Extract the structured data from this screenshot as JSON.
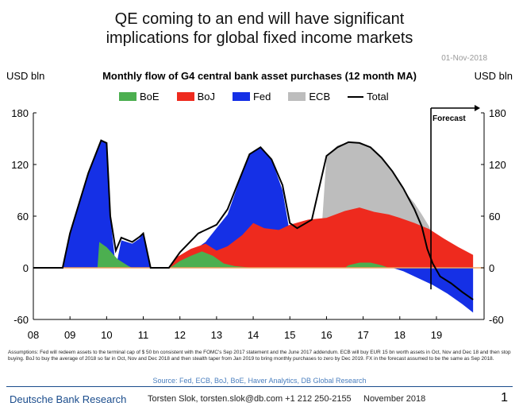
{
  "headline": [
    "QE coming to an end will have significant",
    "implications for global fixed income markets"
  ],
  "date": "01-Nov-2018",
  "chart_data": {
    "type": "area",
    "title": "Monthly flow of G4 central bank asset purchases (12 month MA)",
    "ylabel_left": "USD bln",
    "ylabel_right": "USD bln",
    "ylim": [
      -60,
      180
    ],
    "yticks": [
      -60,
      0,
      60,
      120,
      180
    ],
    "xlim": [
      2008,
      2020.3
    ],
    "xticks": [
      2008,
      2009,
      2010,
      2011,
      2012,
      2013,
      2014,
      2015,
      2016,
      2017,
      2018,
      2019
    ],
    "xtick_labels": [
      "08",
      "09",
      "10",
      "11",
      "12",
      "13",
      "14",
      "15",
      "16",
      "17",
      "18",
      "19"
    ],
    "forecast_start": 2018.85,
    "forecast_label": "Forecast",
    "legend": [
      "BoE",
      "BoJ",
      "Fed",
      "ECB",
      "Total"
    ],
    "colors": {
      "BoE": "#4caf50",
      "BoJ": "#ee2a1e",
      "Fed": "#1530e6",
      "ECB": "#bdbdbd",
      "Total": "#000000"
    },
    "series": [
      {
        "name": "BoE",
        "points": [
          [
            2009.75,
            0
          ],
          [
            2009.8,
            30
          ],
          [
            2010.0,
            24
          ],
          [
            2010.3,
            10
          ],
          [
            2010.6,
            2
          ],
          [
            2010.7,
            0
          ],
          [
            2011.7,
            0
          ],
          [
            2011.8,
            2
          ],
          [
            2012.0,
            8
          ],
          [
            2012.3,
            14
          ],
          [
            2012.6,
            19
          ],
          [
            2012.9,
            14
          ],
          [
            2013.2,
            5
          ],
          [
            2013.5,
            2
          ],
          [
            2014.0,
            0
          ],
          [
            2016.5,
            0
          ],
          [
            2016.6,
            3
          ],
          [
            2016.9,
            6
          ],
          [
            2017.2,
            6
          ],
          [
            2017.5,
            3
          ],
          [
            2017.7,
            0
          ],
          [
            2020.0,
            0
          ]
        ]
      },
      {
        "name": "BoJ",
        "points": [
          [
            2011.7,
            0
          ],
          [
            2011.9,
            12
          ],
          [
            2012.3,
            22
          ],
          [
            2012.7,
            28
          ],
          [
            2013.0,
            20
          ],
          [
            2013.3,
            25
          ],
          [
            2013.7,
            38
          ],
          [
            2014.0,
            52
          ],
          [
            2014.3,
            46
          ],
          [
            2014.7,
            44
          ],
          [
            2015.0,
            50
          ],
          [
            2015.5,
            56
          ],
          [
            2016.0,
            58
          ],
          [
            2016.5,
            66
          ],
          [
            2016.9,
            70
          ],
          [
            2017.3,
            65
          ],
          [
            2017.7,
            62
          ],
          [
            2018.0,
            58
          ],
          [
            2018.4,
            52
          ],
          [
            2018.8,
            45
          ],
          [
            2019.2,
            34
          ],
          [
            2019.6,
            24
          ],
          [
            2020.0,
            15
          ]
        ]
      },
      {
        "name": "Fed",
        "points": [
          [
            2008.8,
            0
          ],
          [
            2009.0,
            40
          ],
          [
            2009.5,
            110
          ],
          [
            2009.85,
            148
          ],
          [
            2010.0,
            145
          ],
          [
            2010.1,
            60
          ],
          [
            2010.25,
            0
          ],
          [
            2010.4,
            32
          ],
          [
            2010.7,
            28
          ],
          [
            2010.9,
            34
          ],
          [
            2011.0,
            40
          ],
          [
            2011.1,
            20
          ],
          [
            2011.2,
            0
          ],
          [
            2011.8,
            0
          ],
          [
            2012.3,
            18
          ],
          [
            2012.7,
            30
          ],
          [
            2013.0,
            46
          ],
          [
            2013.3,
            62
          ],
          [
            2013.6,
            98
          ],
          [
            2013.9,
            132
          ],
          [
            2014.2,
            140
          ],
          [
            2014.5,
            126
          ],
          [
            2014.8,
            90
          ],
          [
            2015.0,
            40
          ],
          [
            2015.2,
            12
          ],
          [
            2015.4,
            0
          ],
          [
            2017.8,
            0
          ],
          [
            2018.1,
            -4
          ],
          [
            2018.5,
            -12
          ],
          [
            2018.9,
            -20
          ],
          [
            2019.3,
            -30
          ],
          [
            2019.7,
            -42
          ],
          [
            2020.0,
            -52
          ]
        ]
      },
      {
        "name": "ECB",
        "points": [
          [
            2015.8,
            0
          ],
          [
            2016.0,
            130
          ],
          [
            2016.3,
            142
          ],
          [
            2016.6,
            146
          ],
          [
            2016.9,
            145
          ],
          [
            2017.2,
            140
          ],
          [
            2017.5,
            128
          ],
          [
            2017.8,
            112
          ],
          [
            2018.1,
            90
          ],
          [
            2018.4,
            75
          ],
          [
            2018.6,
            62
          ],
          [
            2018.8,
            48
          ],
          [
            2018.95,
            30
          ],
          [
            2019.05,
            0
          ],
          [
            2020.0,
            0
          ]
        ]
      },
      {
        "name": "Total",
        "points": [
          [
            2008.0,
            0
          ],
          [
            2008.8,
            0
          ],
          [
            2009.0,
            40
          ],
          [
            2009.5,
            110
          ],
          [
            2009.85,
            148
          ],
          [
            2010.0,
            145
          ],
          [
            2010.1,
            60
          ],
          [
            2010.25,
            20
          ],
          [
            2010.4,
            35
          ],
          [
            2010.7,
            30
          ],
          [
            2010.9,
            36
          ],
          [
            2011.0,
            40
          ],
          [
            2011.1,
            20
          ],
          [
            2011.2,
            0
          ],
          [
            2011.7,
            0
          ],
          [
            2012.0,
            18
          ],
          [
            2012.5,
            40
          ],
          [
            2013.0,
            50
          ],
          [
            2013.3,
            68
          ],
          [
            2013.6,
            100
          ],
          [
            2013.9,
            132
          ],
          [
            2014.2,
            140
          ],
          [
            2014.5,
            126
          ],
          [
            2014.8,
            96
          ],
          [
            2015.0,
            52
          ],
          [
            2015.2,
            46
          ],
          [
            2015.6,
            56
          ],
          [
            2016.0,
            130
          ],
          [
            2016.3,
            140
          ],
          [
            2016.6,
            146
          ],
          [
            2016.9,
            145
          ],
          [
            2017.2,
            140
          ],
          [
            2017.5,
            128
          ],
          [
            2017.8,
            112
          ],
          [
            2018.1,
            92
          ],
          [
            2018.4,
            68
          ],
          [
            2018.6,
            48
          ],
          [
            2018.75,
            22
          ],
          [
            2018.9,
            5
          ],
          [
            2019.1,
            -10
          ],
          [
            2019.4,
            -18
          ],
          [
            2019.7,
            -28
          ],
          [
            2020.0,
            -37
          ]
        ]
      }
    ]
  },
  "assumptions": "Assumptions: Fed will redeem assets to the terminal cap of $ 50 bn consistent with the FOMC's Sep 2017 statement and the June 2017 addendum. ECB will buy EUR 15 bn worth assets in Oct, Nov and Dec 18 and then stop buying. BoJ to buy the average of 2018 so far in Oct, Nov and Dec 2018 and then stealth taper from Jan 2019 to bring monthly purchases to zero by Dec 2019. FX in the forecast assumed to be the same as Sep 2018.",
  "source": "Source: Fed, ECB, BoJ, BoE, Haver Analytics, DB Global Research",
  "footer": {
    "company": "Deutsche Bank Research",
    "author": "Torsten Slok, torsten.slok@db.com +1 212 250-2155",
    "date": "November 2018",
    "page": "1"
  }
}
